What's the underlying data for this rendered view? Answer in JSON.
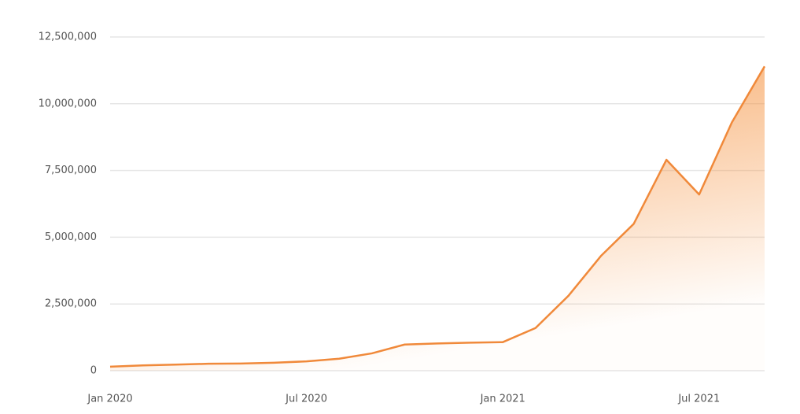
{
  "chart_data": {
    "type": "area",
    "x": [
      "2020-01",
      "2020-02",
      "2020-03",
      "2020-04",
      "2020-05",
      "2020-06",
      "2020-07",
      "2020-08",
      "2020-09",
      "2020-10",
      "2020-11",
      "2020-12",
      "2021-01",
      "2021-02",
      "2021-03",
      "2021-04",
      "2021-05",
      "2021-06",
      "2021-07",
      "2021-08",
      "2021-09"
    ],
    "series": [
      {
        "color": "#f0893a",
        "values": [
          150000,
          200000,
          230000,
          260000,
          270000,
          300000,
          350000,
          450000,
          650000,
          980000,
          1020000,
          1050000,
          1070000,
          1600000,
          2800000,
          4300000,
          5500000,
          7900000,
          6600000,
          9300000,
          11400000
        ]
      }
    ],
    "ylim": [
      0,
      12500000
    ],
    "yticks": [
      0,
      {
        "value": 2500000,
        "label": "2,500,000"
      },
      {
        "value": 5000000,
        "label": "5,000,000"
      },
      {
        "value": 7500000,
        "label": "7,500,000"
      },
      {
        "value": 10000000,
        "label": "10,000,000"
      },
      {
        "value": 12500000,
        "label": "12,500,000"
      }
    ],
    "xticks": [
      {
        "value": "2020-01",
        "label": "Jan 2020"
      },
      {
        "value": "2020-07",
        "label": "Jul 2020"
      },
      {
        "value": "2021-01",
        "label": "Jan 2021"
      },
      {
        "value": "2021-07",
        "label": "Jul 2021"
      }
    ],
    "grid": true
  }
}
